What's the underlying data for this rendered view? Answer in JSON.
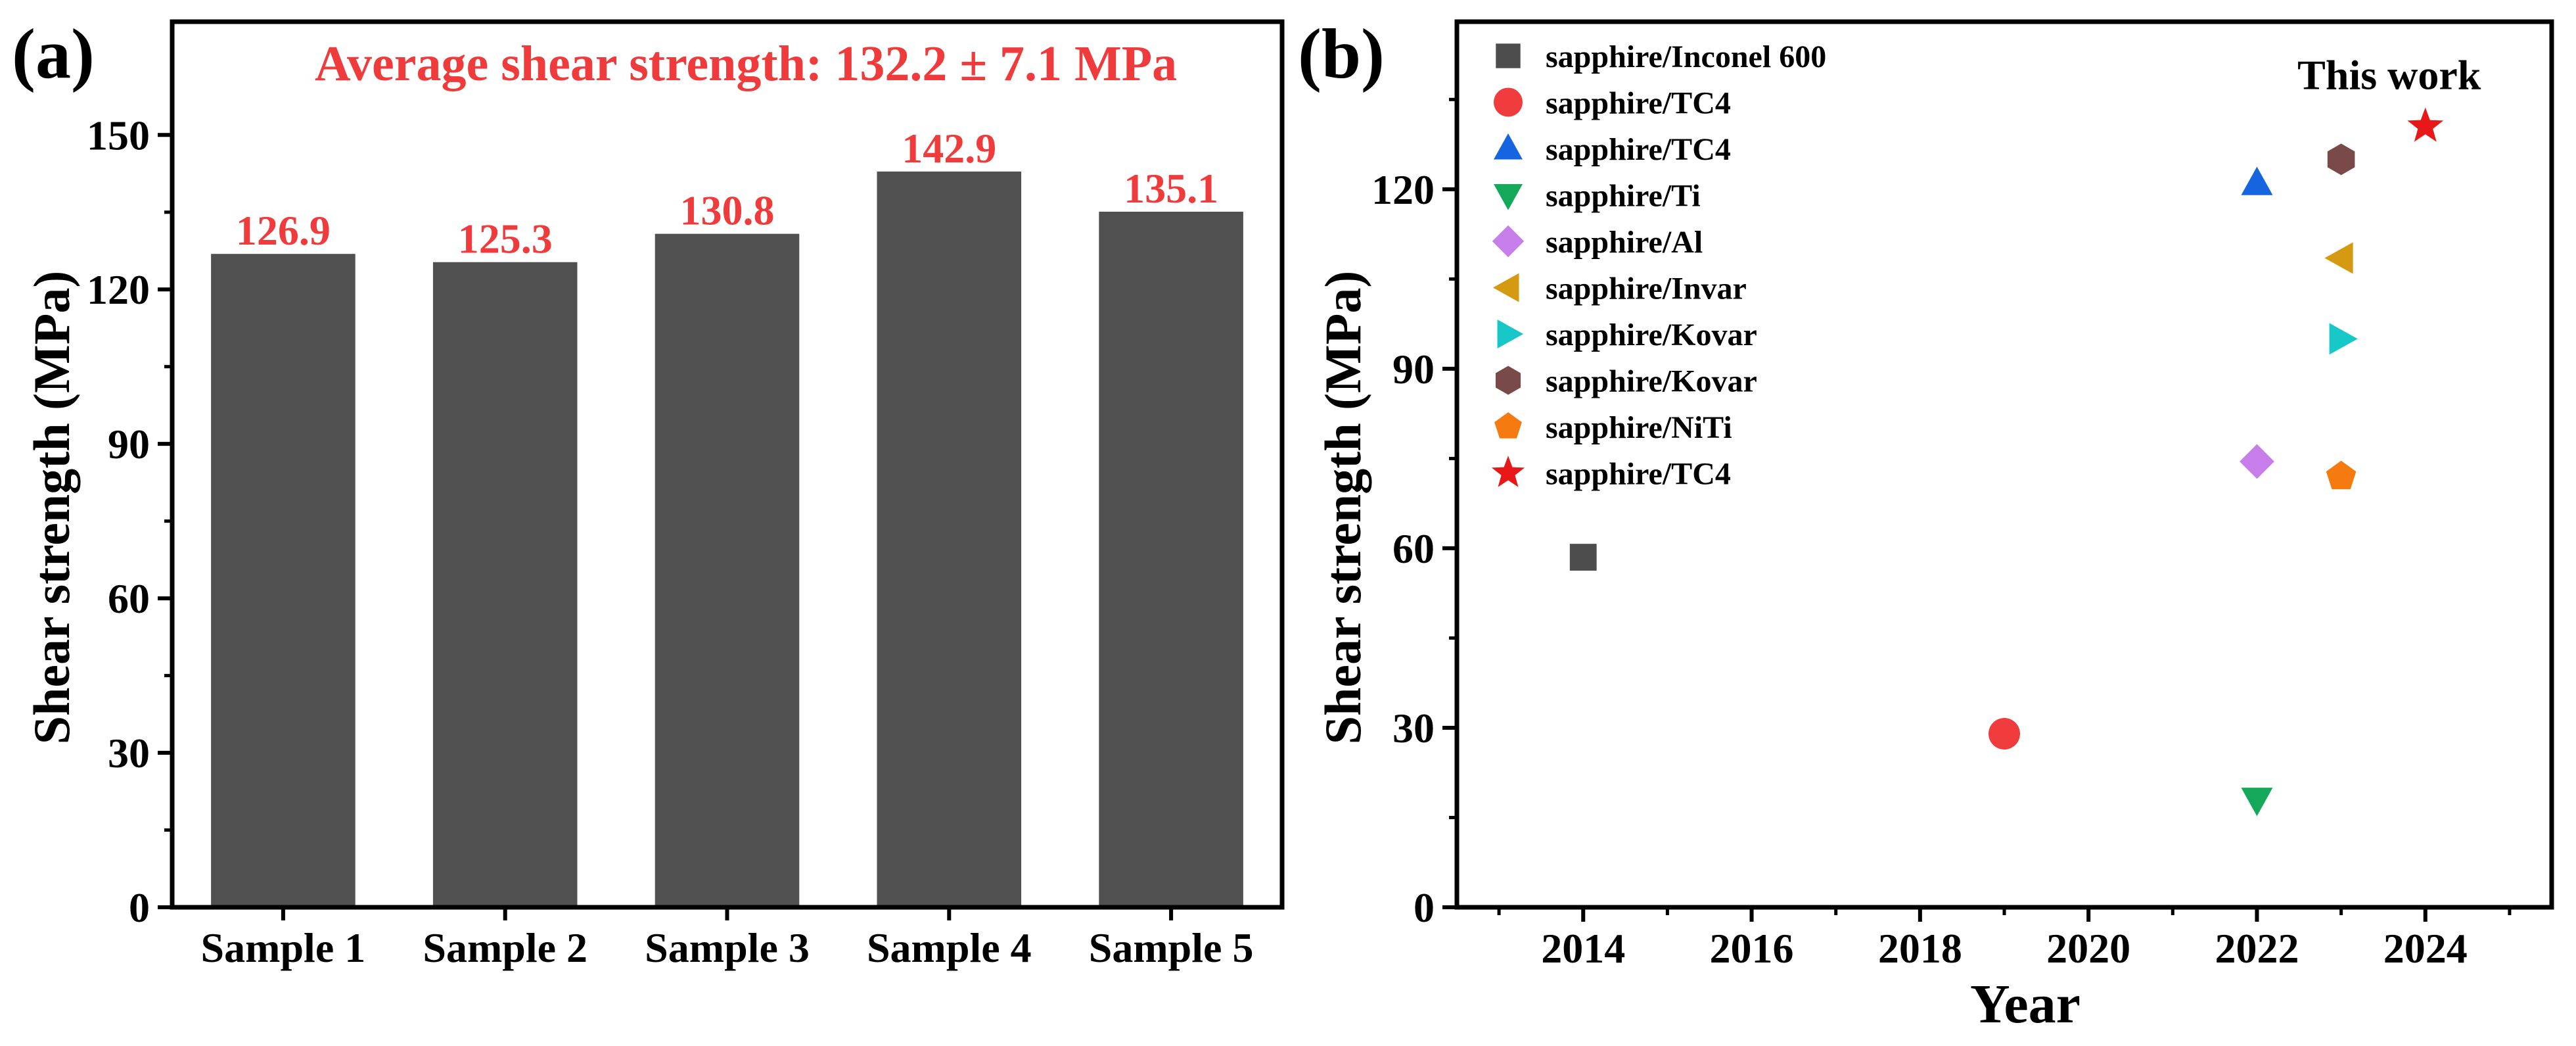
{
  "chart_data": [
    {
      "type": "bar",
      "panel_label": "(a)",
      "title": "Average shear strength: 132.2 ± 7.1 MPa",
      "categories": [
        "Sample 1",
        "Sample 2",
        "Sample 3",
        "Sample 4",
        "Sample 5"
      ],
      "values": [
        126.9,
        125.3,
        130.8,
        142.9,
        135.1
      ],
      "data_labels": [
        "126.9",
        "125.3",
        "130.8",
        "142.9",
        "135.1"
      ],
      "ylabel": "Shear strength (MPa)",
      "xlabel": "",
      "ylim": [
        0,
        172
      ],
      "yticks": [
        0,
        30,
        60,
        90,
        120,
        150
      ],
      "grid": false,
      "colors": {
        "bar": "#505050",
        "label": "#ef3b3b",
        "title": "#ef3b3b"
      }
    },
    {
      "type": "scatter",
      "panel_label": "(b)",
      "xlabel": "Year",
      "ylabel": "Shear strength (MPa)",
      "xlim": [
        2012.5,
        2025.5
      ],
      "ylim": [
        0,
        148
      ],
      "xticks": [
        2014,
        2016,
        2018,
        2020,
        2022,
        2024
      ],
      "yticks": [
        0,
        30,
        60,
        90,
        120
      ],
      "grid": false,
      "legend_position": "top-left",
      "annotation": {
        "text": "This work",
        "x": 2024,
        "y": 130.5
      },
      "series": [
        {
          "name": "sapphire/Inconel 600",
          "marker": "square",
          "color": "#4d4d4d",
          "x": 2014,
          "y": 58.5
        },
        {
          "name": "sapphire/TC4",
          "marker": "circle",
          "color": "#f03c3c",
          "x": 2019,
          "y": 29
        },
        {
          "name": "sapphire/TC4",
          "marker": "triangle-up",
          "color": "#1565e0",
          "x": 2022,
          "y": 121
        },
        {
          "name": "sapphire/Ti",
          "marker": "triangle-down",
          "color": "#14a85a",
          "x": 2022,
          "y": 18
        },
        {
          "name": "sapphire/Al",
          "marker": "diamond",
          "color": "#c77dea",
          "x": 2022,
          "y": 74.5
        },
        {
          "name": "sapphire/Invar",
          "marker": "triangle-left",
          "color": "#d69a12",
          "x": 2023,
          "y": 108.5
        },
        {
          "name": "sapphire/Kovar",
          "marker": "triangle-right",
          "color": "#18c8c8",
          "x": 2023,
          "y": 95
        },
        {
          "name": "sapphire/Kovar",
          "marker": "hexagon",
          "color": "#7a4a4a",
          "x": 2023,
          "y": 125
        },
        {
          "name": "sapphire/NiTi",
          "marker": "pentagon",
          "color": "#f57a10",
          "x": 2023,
          "y": 72
        },
        {
          "name": "sapphire/TC4",
          "marker": "star",
          "color": "#e81818",
          "x": 2024,
          "y": 130.5
        }
      ]
    }
  ]
}
